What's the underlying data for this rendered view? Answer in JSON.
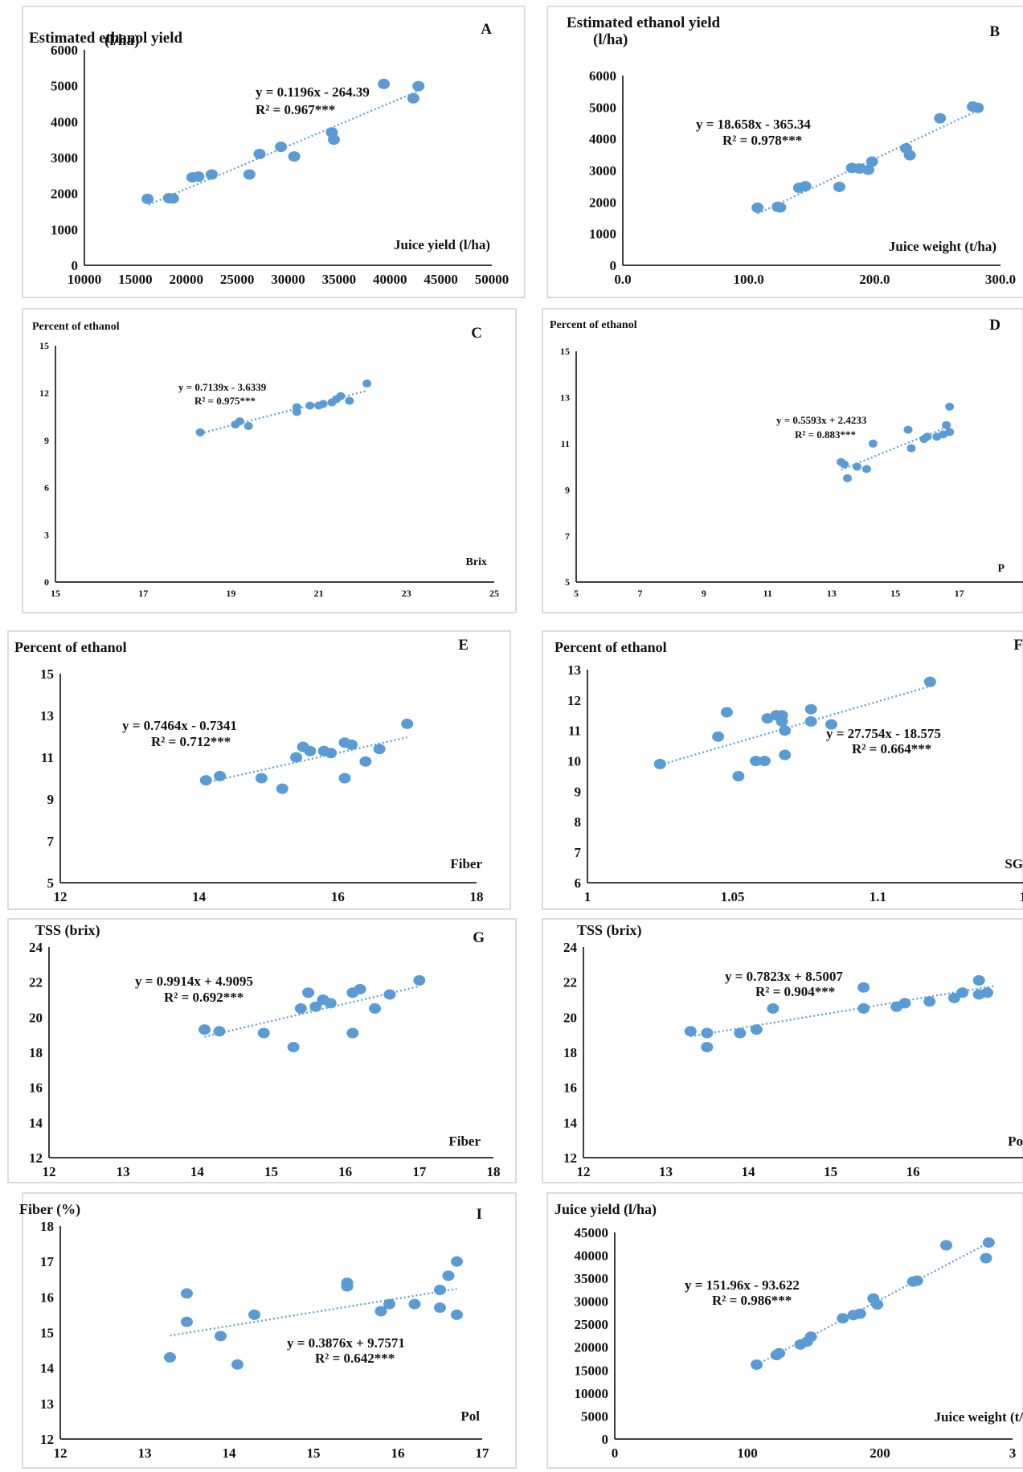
{
  "colors": {
    "point": "#5b9bd5",
    "trend": "#5b9bd5",
    "axis": "#000000",
    "frame": "#d0d0d0"
  },
  "chart_data": [
    {
      "type": "scatter",
      "panel_label": "A",
      "ylabel": "Estimated ethanol yield (l/ha)",
      "xlabel": "Juice yield (l/ha)",
      "xlim": [
        10000,
        50000
      ],
      "ylim": [
        0,
        6000
      ],
      "xticks": [
        "10000",
        "15000",
        "20000",
        "25000",
        "30000",
        "35000",
        "40000",
        "45000",
        "50000"
      ],
      "yticks": [
        "0",
        "1000",
        "2000",
        "3000",
        "4000",
        "5000",
        "6000"
      ],
      "equation": "y = 0.1196x - 264.39",
      "r2": "R² = 0.967***",
      "trend": {
        "slope": 0.1196,
        "intercept": -264.39,
        "x_range": [
          16300,
          42800
        ]
      },
      "x": [
        16200,
        18300,
        18700,
        20600,
        21200,
        22500,
        26200,
        27200,
        29300,
        30600,
        34300,
        34500,
        39400,
        42300,
        42800
      ],
      "y": [
        1850,
        1870,
        1860,
        2450,
        2470,
        2530,
        2530,
        3100,
        3300,
        3030,
        3700,
        3500,
        5050,
        4650,
        4990
      ]
    },
    {
      "type": "scatter",
      "panel_label": "B",
      "ylabel": "Estimated ethanol yield (l/ha)",
      "xlabel": "Juice weight (t/ha)",
      "xlim": [
        0,
        300
      ],
      "ylim": [
        0,
        6000
      ],
      "xticks": [
        "0.0",
        "100.0",
        "200.0",
        "300.0"
      ],
      "yticks": [
        "0",
        "1000",
        "2000",
        "3000",
        "4000",
        "5000",
        "6000"
      ],
      "equation": "y = 18.658x - 365.34",
      "r2": "R² = 0.978***",
      "trend": {
        "slope": 18.658,
        "intercept": -365.34,
        "x_range": [
          107,
          282
        ]
      },
      "x": [
        107,
        123,
        125,
        140,
        145,
        172,
        182,
        188,
        195,
        198,
        225,
        228,
        252,
        278,
        282
      ],
      "y": [
        1820,
        1850,
        1830,
        2450,
        2500,
        2480,
        3080,
        3060,
        3020,
        3280,
        3700,
        3480,
        4650,
        5020,
        4980
      ]
    },
    {
      "type": "scatter",
      "panel_label": "C",
      "ylabel": "Percent of ethanol",
      "xlabel": "Brix",
      "xlim": [
        15,
        25
      ],
      "ylim": [
        0,
        15
      ],
      "xticks": [
        "15",
        "17",
        "19",
        "21",
        "23",
        "25"
      ],
      "yticks": [
        "0",
        "3",
        "6",
        "9",
        "12",
        "15"
      ],
      "equation": "y = 0.7139x - 3.6339",
      "r2": "R² = 0.975***",
      "trend": {
        "slope": 0.7139,
        "intercept": -3.6339,
        "x_range": [
          18.3,
          22.1
        ]
      },
      "x": [
        18.3,
        19.1,
        19.2,
        19.4,
        20.5,
        20.5,
        20.8,
        21.0,
        21.1,
        21.3,
        21.4,
        21.5,
        21.7,
        22.1
      ],
      "y": [
        9.5,
        10.0,
        10.2,
        9.9,
        10.8,
        11.1,
        11.2,
        11.2,
        11.3,
        11.4,
        11.6,
        11.8,
        11.5,
        12.6
      ]
    },
    {
      "type": "scatter",
      "panel_label": "D",
      "ylabel": "Percent of ethanol",
      "xlabel": "P",
      "xlim": [
        5,
        19
      ],
      "ylim": [
        5,
        15
      ],
      "xticks": [
        "5",
        "7",
        "9",
        "11",
        "13",
        "15",
        "17"
      ],
      "yticks": [
        "5",
        "7",
        "9",
        "11",
        "13",
        "15"
      ],
      "equation": "y = 0.5593x + 2.4233",
      "r2": "R² = 0.883***",
      "trend": {
        "slope": 0.5593,
        "intercept": 2.4233,
        "x_range": [
          13.3,
          16.8
        ]
      },
      "x": [
        13.3,
        13.4,
        13.5,
        13.8,
        14.1,
        14.3,
        15.4,
        15.5,
        15.9,
        16.0,
        16.3,
        16.5,
        16.6,
        16.7,
        16.7
      ],
      "y": [
        10.2,
        10.1,
        9.5,
        10.0,
        9.9,
        11.0,
        11.6,
        10.8,
        11.2,
        11.3,
        11.3,
        11.4,
        11.8,
        11.5,
        12.6
      ]
    },
    {
      "type": "scatter",
      "panel_label": "E",
      "ylabel": "Percent of ethanol",
      "xlabel": "Fiber",
      "xlim": [
        12,
        18
      ],
      "ylim": [
        5,
        15
      ],
      "xticks": [
        "12",
        "14",
        "16",
        "18"
      ],
      "yticks": [
        "5",
        "7",
        "9",
        "11",
        "13",
        "15"
      ],
      "equation": "y = 0.7464x - 0.7341",
      "r2": "R² = 0.712***",
      "trend": {
        "slope": 0.7464,
        "intercept": -0.7341,
        "x_range": [
          14.1,
          17.0
        ]
      },
      "x": [
        14.1,
        14.3,
        14.9,
        15.2,
        15.4,
        15.5,
        15.6,
        15.8,
        15.9,
        16.1,
        16.1,
        16.2,
        16.4,
        16.6,
        17.0
      ],
      "y": [
        9.9,
        10.1,
        10.0,
        9.5,
        11.0,
        11.5,
        11.3,
        11.3,
        11.2,
        11.7,
        10.0,
        11.6,
        10.8,
        11.4,
        12.6
      ]
    },
    {
      "type": "scatter",
      "panel_label": "F",
      "ylabel": "Percent of ethanol",
      "xlabel": "SG",
      "xlim": [
        1,
        1.15
      ],
      "ylim": [
        6,
        13
      ],
      "xticks": [
        "1",
        "1.05",
        "1.1",
        "1"
      ],
      "yticks": [
        "6",
        "7",
        "8",
        "9",
        "10",
        "11",
        "12",
        "13"
      ],
      "equation": "y = 27.754x - 18.575",
      "r2": "R² = 0.664***",
      "trend": {
        "slope": 27.754,
        "intercept": -18.575,
        "x_range": [
          1.025,
          1.118
        ]
      },
      "x": [
        1.025,
        1.045,
        1.048,
        1.052,
        1.058,
        1.061,
        1.062,
        1.065,
        1.067,
        1.067,
        1.068,
        1.068,
        1.077,
        1.077,
        1.084,
        1.118
      ],
      "y": [
        9.9,
        10.8,
        11.6,
        9.5,
        10.0,
        10.0,
        11.4,
        11.5,
        11.5,
        11.3,
        11.0,
        10.2,
        11.7,
        11.3,
        11.2,
        12.6
      ]
    },
    {
      "type": "scatter",
      "panel_label": "G",
      "ylabel": "TSS (brix)",
      "xlabel": "Fiber",
      "xlim": [
        12,
        18
      ],
      "ylim": [
        12,
        24
      ],
      "xticks": [
        "12",
        "13",
        "14",
        "15",
        "16",
        "17",
        "18"
      ],
      "yticks": [
        "12",
        "14",
        "16",
        "18",
        "20",
        "22",
        "24"
      ],
      "equation": "y = 0.9914x + 4.9095",
      "r2": "R² = 0.692***",
      "trend": {
        "slope": 0.9914,
        "intercept": 4.9095,
        "x_range": [
          14.1,
          17.0
        ]
      },
      "x": [
        14.1,
        14.3,
        14.9,
        15.3,
        15.4,
        15.5,
        15.6,
        15.7,
        15.8,
        16.1,
        16.1,
        16.2,
        16.4,
        16.6,
        17.0
      ],
      "y": [
        19.3,
        19.2,
        19.1,
        18.3,
        20.5,
        21.4,
        20.6,
        21.0,
        20.8,
        19.1,
        21.4,
        21.6,
        20.5,
        21.3,
        22.1
      ]
    },
    {
      "type": "scatter",
      "panel_label": "",
      "ylabel": "TSS (brix)",
      "xlabel": "Po",
      "xlim": [
        12,
        17.5
      ],
      "ylim": [
        12,
        24
      ],
      "xticks": [
        "12",
        "13",
        "14",
        "15",
        "16"
      ],
      "yticks": [
        "12",
        "14",
        "16",
        "18",
        "20",
        "22",
        "24"
      ],
      "equation": "y = 0.7823x + 8.5007",
      "r2": "R² = 0.904***",
      "trend": {
        "slope": 0.7823,
        "intercept": 8.5007,
        "x_range": [
          13.3,
          17.0
        ]
      },
      "x": [
        13.3,
        13.5,
        13.5,
        13.9,
        14.1,
        14.3,
        15.4,
        15.4,
        15.8,
        15.9,
        16.2,
        16.5,
        16.6,
        16.8,
        16.8,
        16.9
      ],
      "y": [
        19.2,
        19.1,
        18.3,
        19.1,
        19.3,
        20.5,
        21.7,
        20.5,
        20.6,
        20.8,
        20.9,
        21.1,
        21.4,
        21.3,
        22.1,
        21.4
      ]
    },
    {
      "type": "scatter",
      "panel_label": "I",
      "ylabel": "Fiber (%)",
      "xlabel": "Pol",
      "xlim": [
        12,
        17
      ],
      "ylim": [
        12,
        18
      ],
      "xticks": [
        "12",
        "13",
        "14",
        "15",
        "16",
        "17"
      ],
      "yticks": [
        "12",
        "13",
        "14",
        "15",
        "16",
        "17",
        "18"
      ],
      "equation": "y = 0.3876x + 9.7571",
      "r2": "R² = 0.642***",
      "trend": {
        "slope": 0.3876,
        "intercept": 9.7571,
        "x_range": [
          13.3,
          16.7
        ]
      },
      "x": [
        13.3,
        13.5,
        13.5,
        13.9,
        14.1,
        14.3,
        15.4,
        15.4,
        15.8,
        15.9,
        16.2,
        16.5,
        16.5,
        16.6,
        16.7,
        16.7
      ],
      "y": [
        14.3,
        16.1,
        15.3,
        14.9,
        14.1,
        15.5,
        16.3,
        16.4,
        15.6,
        15.8,
        15.8,
        15.7,
        16.2,
        16.6,
        17.0,
        15.5
      ]
    },
    {
      "type": "scatter",
      "panel_label": "",
      "ylabel": "Juice yield (l/ha)",
      "xlabel": "Juice weight (t/",
      "xlim": [
        0,
        300
      ],
      "ylim": [
        0,
        45000
      ],
      "xticks": [
        "0",
        "100",
        "200",
        "3"
      ],
      "yticks": [
        "0",
        "5000",
        "10000",
        "15000",
        "20000",
        "25000",
        "30000",
        "35000",
        "40000",
        "45000"
      ],
      "equation": "y = 151.96x - 93.622",
      "r2": "R² = 0.986***",
      "trend": {
        "slope": 151.96,
        "intercept": -93.622,
        "x_range": [
          107,
          282
        ]
      },
      "x": [
        107,
        122,
        124,
        140,
        145,
        148,
        172,
        180,
        185,
        195,
        198,
        225,
        228,
        250,
        280,
        282
      ],
      "y": [
        16200,
        18300,
        18700,
        20600,
        21200,
        22300,
        26300,
        27000,
        27300,
        30600,
        29300,
        34300,
        34500,
        42200,
        39400,
        42800
      ]
    }
  ]
}
